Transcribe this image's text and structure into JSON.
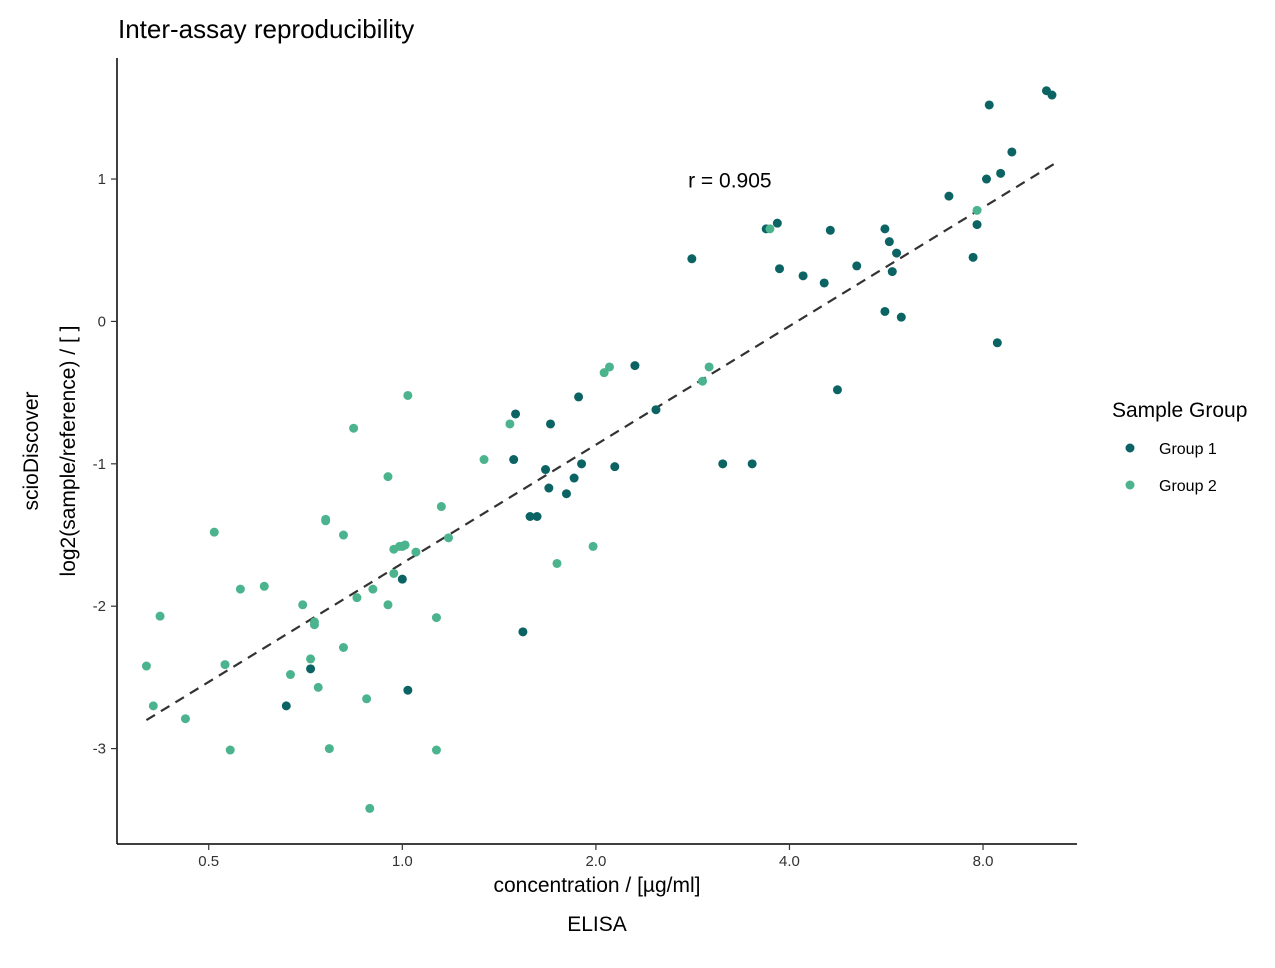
{
  "chart_data": {
    "type": "scatter",
    "title": "Inter-assay reproducibility",
    "xlabel": "concentration / [µg/ml]",
    "xlabel2": "ELISA",
    "ylabel": "scioDiscover",
    "ylabel2": "log2(sample/reference) / [ ]",
    "x_scale": "log2",
    "xlim": [
      0.36,
      11.2
    ],
    "ylim": [
      -3.67,
      1.85
    ],
    "xticks": [
      0.5,
      1.0,
      2.0,
      4.0,
      8.0
    ],
    "xtick_labels": [
      "0.5",
      "1.0",
      "2.0",
      "4.0",
      "8.0"
    ],
    "yticks": [
      -3,
      -2,
      -1,
      0,
      1
    ],
    "ytick_labels": [
      "-3",
      "-2",
      "-1",
      "0",
      "1"
    ],
    "grid": false,
    "legend": {
      "title": "Sample Group",
      "position": "right"
    },
    "annotation": {
      "text": "r = 0.905",
      "x": 2.8,
      "y": 0.99
    },
    "regression": {
      "style": "dashed",
      "color": "#333333",
      "x": [
        0.4,
        10.44
      ],
      "y": [
        -2.8,
        1.12
      ]
    },
    "series": [
      {
        "name": "Group 1",
        "color": "#0b6463",
        "points": [
          [
            0.66,
            -2.7
          ],
          [
            0.72,
            -2.44
          ],
          [
            1.0,
            -1.81
          ],
          [
            1.02,
            -2.59
          ],
          [
            1.5,
            -0.65
          ],
          [
            1.49,
            -0.97
          ],
          [
            1.58,
            -1.37
          ],
          [
            1.62,
            -1.37
          ],
          [
            1.67,
            -1.04
          ],
          [
            1.69,
            -1.17
          ],
          [
            1.7,
            -0.72
          ],
          [
            1.8,
            -1.21
          ],
          [
            1.85,
            -1.1
          ],
          [
            1.88,
            -0.53
          ],
          [
            1.9,
            -1.0
          ],
          [
            1.54,
            -2.18
          ],
          [
            2.14,
            -1.02
          ],
          [
            2.3,
            -0.31
          ],
          [
            2.48,
            -0.62
          ],
          [
            2.82,
            0.44
          ],
          [
            3.15,
            -1.0
          ],
          [
            3.5,
            -1.0
          ],
          [
            3.68,
            0.65
          ],
          [
            3.83,
            0.69
          ],
          [
            3.86,
            0.37
          ],
          [
            4.2,
            0.32
          ],
          [
            4.53,
            0.27
          ],
          [
            4.63,
            0.64
          ],
          [
            4.75,
            -0.48
          ],
          [
            5.09,
            0.39
          ],
          [
            5.63,
            0.65
          ],
          [
            5.63,
            0.07
          ],
          [
            5.72,
            0.56
          ],
          [
            5.78,
            0.35
          ],
          [
            5.87,
            0.48
          ],
          [
            5.97,
            0.03
          ],
          [
            7.08,
            0.88
          ],
          [
            7.72,
            0.45
          ],
          [
            7.83,
            0.68
          ],
          [
            8.1,
            1.0
          ],
          [
            8.18,
            1.52
          ],
          [
            8.42,
            -0.15
          ],
          [
            8.52,
            1.04
          ],
          [
            8.87,
            1.19
          ],
          [
            10.04,
            1.62
          ],
          [
            10.24,
            1.59
          ]
        ]
      },
      {
        "name": "Group 2",
        "color": "#4bb48e",
        "points": [
          [
            0.4,
            -2.42
          ],
          [
            0.41,
            -2.7
          ],
          [
            0.42,
            -2.07
          ],
          [
            0.46,
            -2.79
          ],
          [
            0.51,
            -1.48
          ],
          [
            0.53,
            -2.41
          ],
          [
            0.54,
            -3.01
          ],
          [
            0.56,
            -1.88
          ],
          [
            0.61,
            -1.86
          ],
          [
            0.67,
            -2.48
          ],
          [
            0.7,
            -1.99
          ],
          [
            0.72,
            -2.37
          ],
          [
            0.73,
            -2.13
          ],
          [
            0.73,
            -2.11
          ],
          [
            0.74,
            -2.57
          ],
          [
            0.76,
            -1.39
          ],
          [
            0.76,
            -1.4
          ],
          [
            0.77,
            -3.0
          ],
          [
            0.81,
            -2.29
          ],
          [
            0.81,
            -1.5
          ],
          [
            0.84,
            -0.75
          ],
          [
            0.85,
            -1.94
          ],
          [
            0.88,
            -2.65
          ],
          [
            0.89,
            -3.42
          ],
          [
            0.9,
            -1.88
          ],
          [
            0.95,
            -1.99
          ],
          [
            0.95,
            -1.09
          ],
          [
            0.97,
            -1.77
          ],
          [
            0.97,
            -1.6
          ],
          [
            0.99,
            -1.58
          ],
          [
            1.0,
            -1.58
          ],
          [
            1.01,
            -1.57
          ],
          [
            1.02,
            -0.52
          ],
          [
            1.05,
            -1.62
          ],
          [
            1.13,
            -2.08
          ],
          [
            1.13,
            -3.01
          ],
          [
            1.15,
            -1.3
          ],
          [
            1.18,
            -1.52
          ],
          [
            1.34,
            -0.97
          ],
          [
            1.47,
            -0.72
          ],
          [
            1.74,
            -1.7
          ],
          [
            1.98,
            -1.58
          ],
          [
            2.06,
            -0.36
          ],
          [
            2.1,
            -0.32
          ],
          [
            2.93,
            -0.42
          ],
          [
            3.0,
            -0.32
          ],
          [
            3.73,
            0.65
          ],
          [
            7.83,
            0.78
          ]
        ]
      }
    ]
  }
}
